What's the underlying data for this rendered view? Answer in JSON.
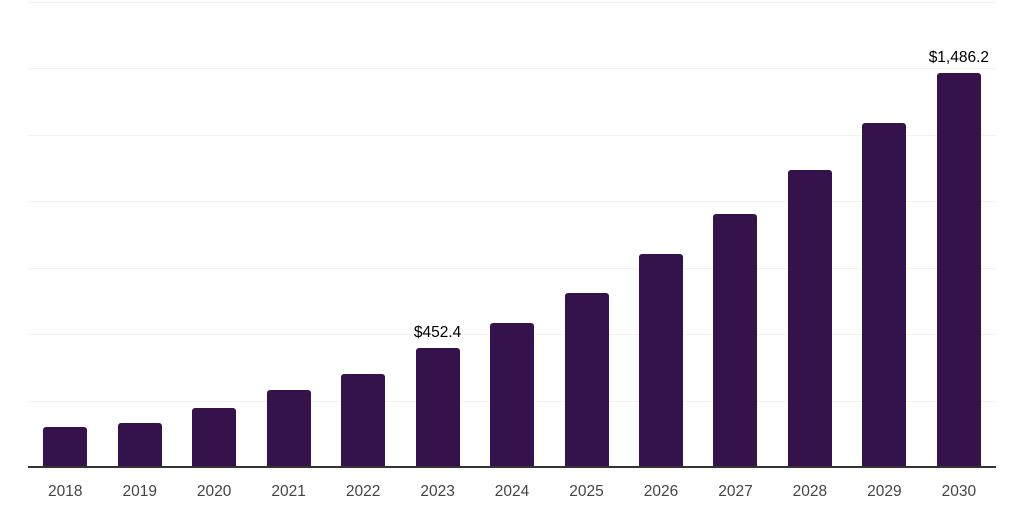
{
  "chart_data": {
    "type": "bar",
    "title": "",
    "xlabel": "",
    "ylabel": "",
    "categories": [
      "2018",
      "2019",
      "2020",
      "2021",
      "2022",
      "2023",
      "2024",
      "2025",
      "2026",
      "2027",
      "2028",
      "2029",
      "2030"
    ],
    "values": [
      153.4,
      168.4,
      224.5,
      291.8,
      355.3,
      452.4,
      546.0,
      658.2,
      804.1,
      957.4,
      1122.0,
      1297.8,
      1486.2
    ],
    "bar_labels": [
      "",
      "",
      "",
      "",
      "",
      "$452.4",
      "",
      "",
      "",
      "",
      "",
      "",
      "$1,486.2"
    ],
    "ylim": [
      0,
      1750
    ],
    "gridline_interval": 250,
    "grid": "horizontal",
    "legend": "none"
  },
  "colors": {
    "bar": "#35124B",
    "gridline": "#f2f2f2",
    "axis": "#333333",
    "year_label": "#444444",
    "value_label": "#000000",
    "background": "#ffffff"
  }
}
